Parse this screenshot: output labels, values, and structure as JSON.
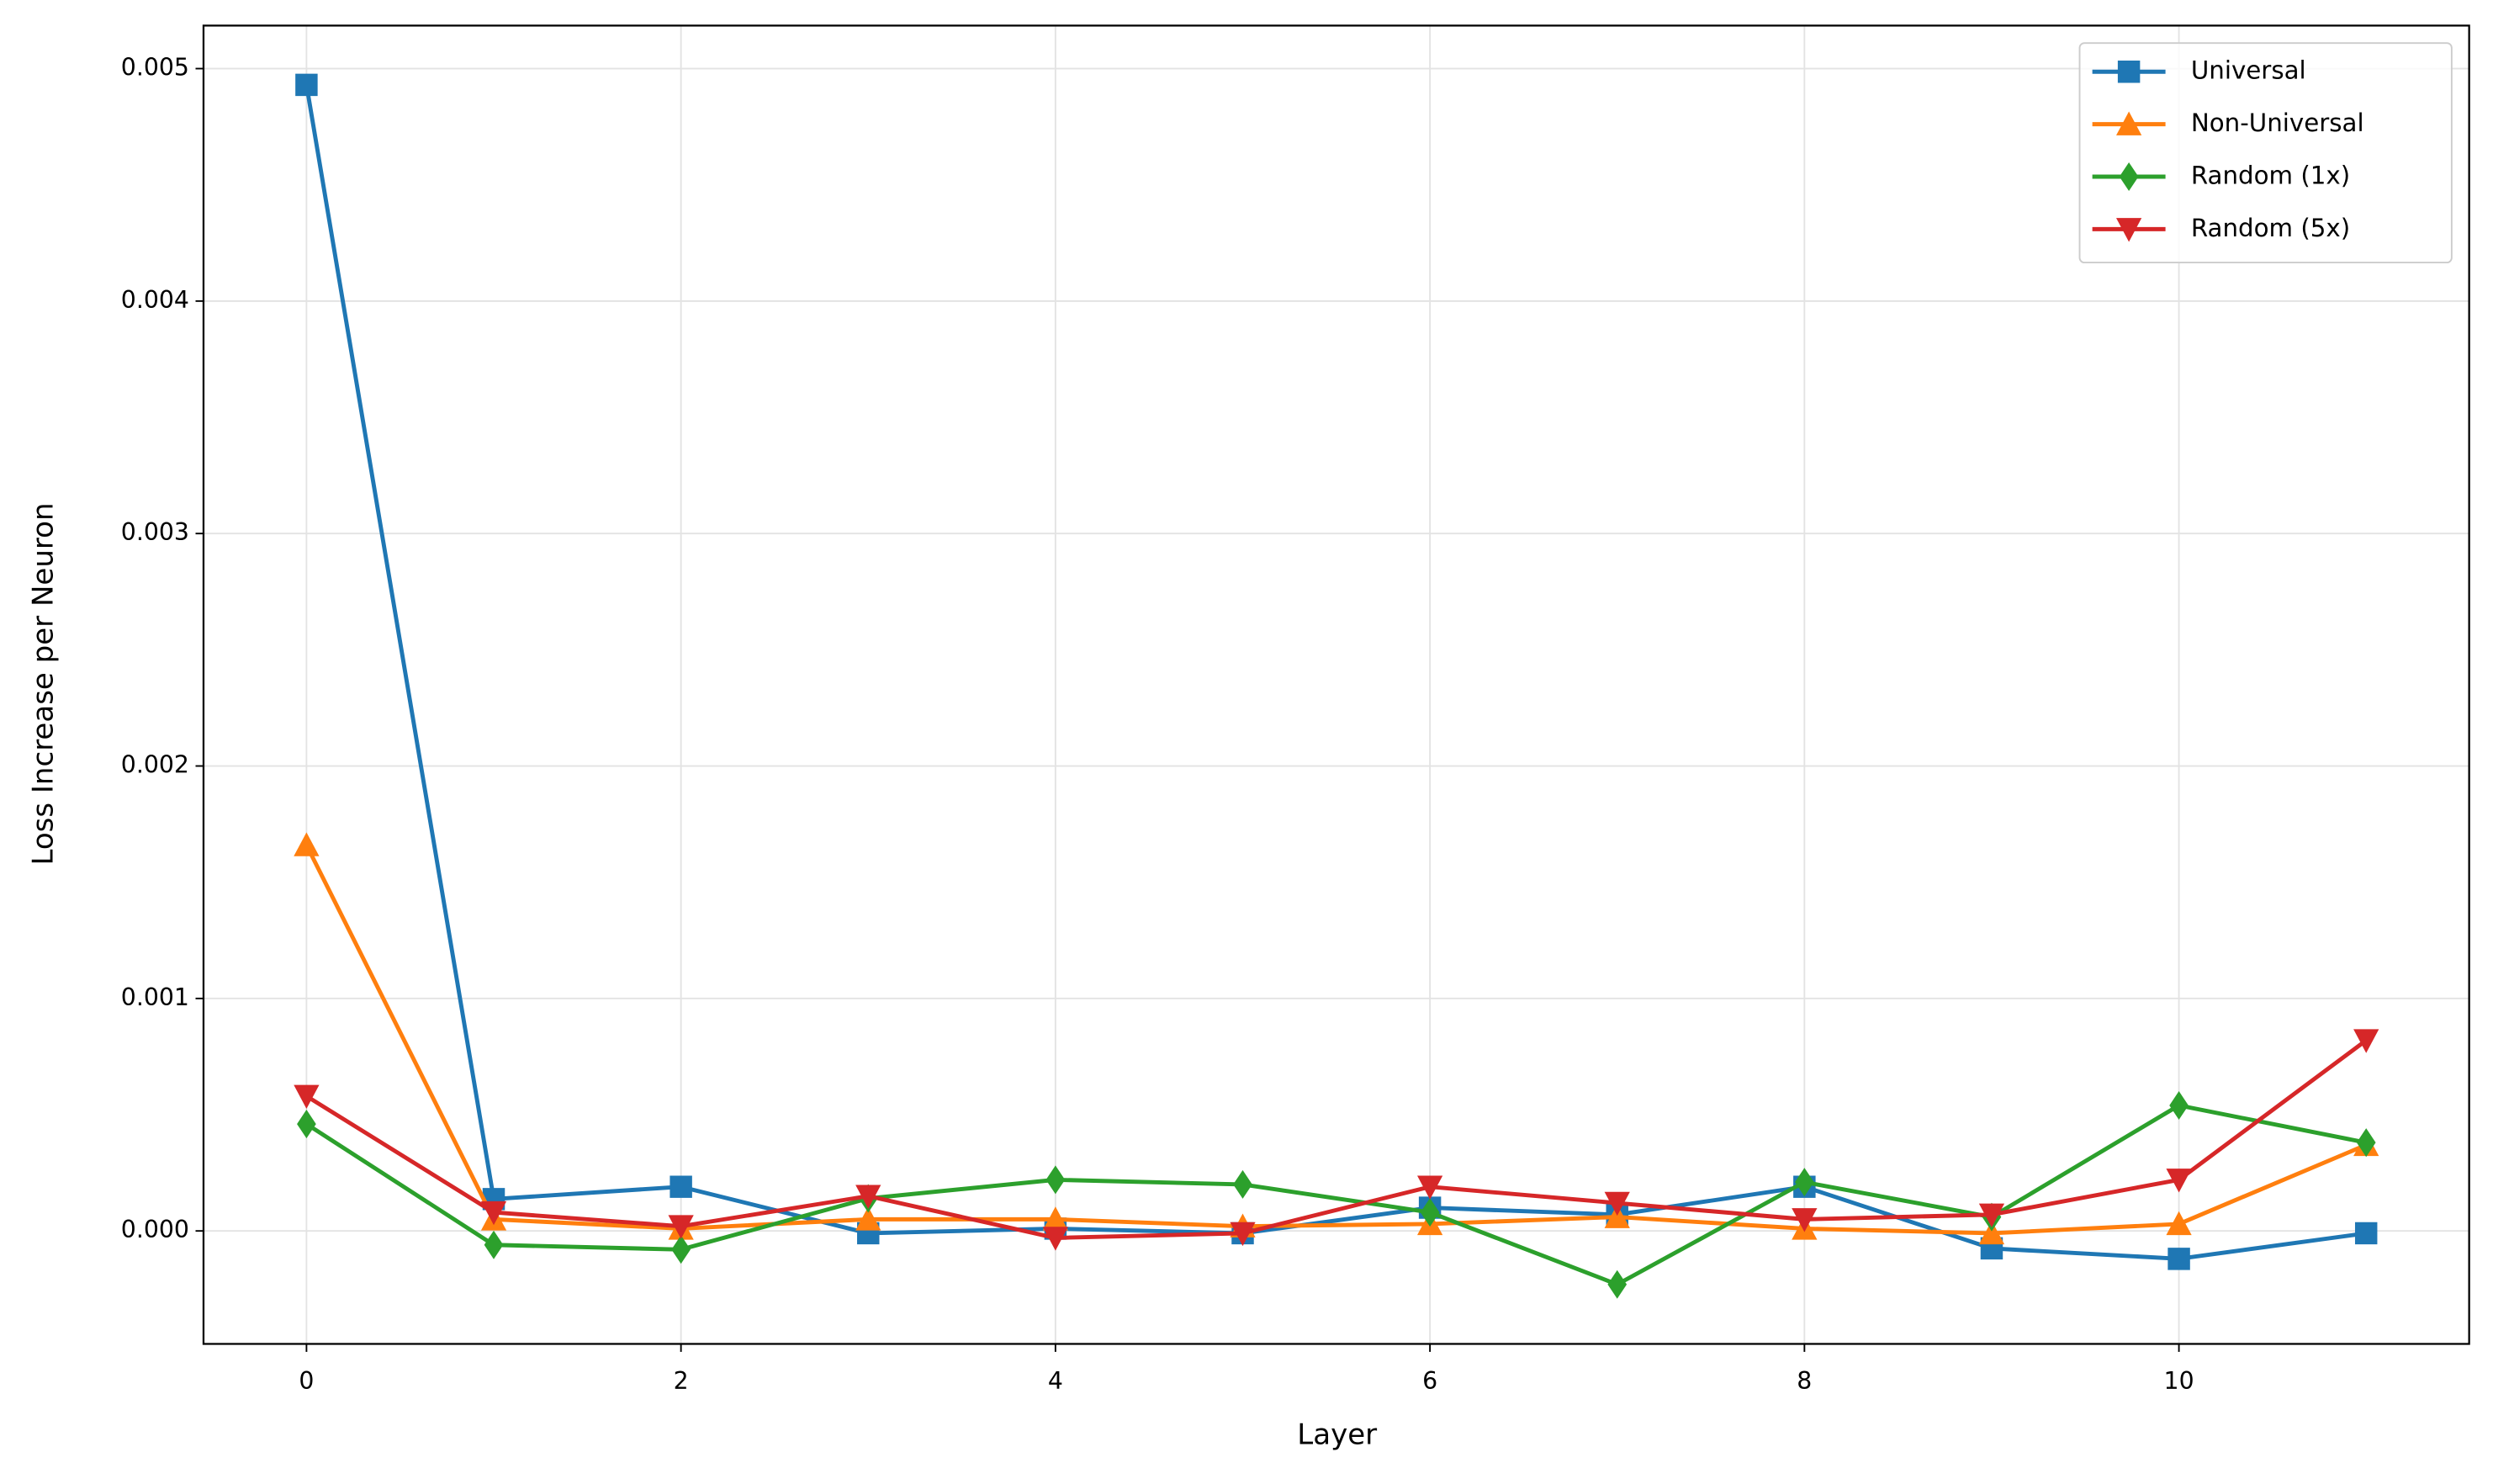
{
  "chart_data": {
    "type": "line",
    "x_label": "Layer",
    "y_label": "Loss Increase per Neuron",
    "x": [
      0,
      1,
      2,
      3,
      4,
      5,
      6,
      7,
      8,
      9,
      10,
      11
    ],
    "series": [
      {
        "name": "Universal",
        "color": "#1f77b4",
        "marker": "square",
        "values": [
          0.00493,
          0.000137,
          0.00019,
          -1e-05,
          1e-05,
          -1e-05,
          0.0001,
          7e-05,
          0.00019,
          -7.5e-05,
          -0.00012,
          -1e-05
        ]
      },
      {
        "name": "Non-Universal",
        "color": "#ff7f0e",
        "marker": "triangle-up",
        "values": [
          0.00166,
          5e-05,
          1e-05,
          5e-05,
          5e-05,
          2e-05,
          3e-05,
          6e-05,
          1e-05,
          -1e-05,
          3e-05,
          0.00037
        ]
      },
      {
        "name": "Random (1x)",
        "color": "#2ca02c",
        "marker": "diamond",
        "values": [
          0.00046,
          -6e-05,
          -8e-05,
          0.00014,
          0.00022,
          0.0002,
          8e-05,
          -0.00023,
          0.00021,
          6e-05,
          0.00054,
          0.00038
        ]
      },
      {
        "name": "Random (5x)",
        "color": "#d62728",
        "marker": "triangle-down",
        "values": [
          0.00058,
          8e-05,
          2e-05,
          0.00015,
          -3e-05,
          -1e-05,
          0.00019,
          0.00012,
          5e-05,
          7e-05,
          0.00022,
          0.00082
        ]
      }
    ],
    "xlim": [
      -0.55,
      11.55
    ],
    "xticks": [
      0,
      2,
      4,
      6,
      8,
      10
    ],
    "ylim": [
      -0.000486,
      0.005185
    ],
    "yticks": [
      {
        "value": 0,
        "label": "0.000"
      },
      0.001,
      0.002,
      0.003,
      0.004,
      0.005
    ],
    "grid": true,
    "legend": "upper right"
  }
}
